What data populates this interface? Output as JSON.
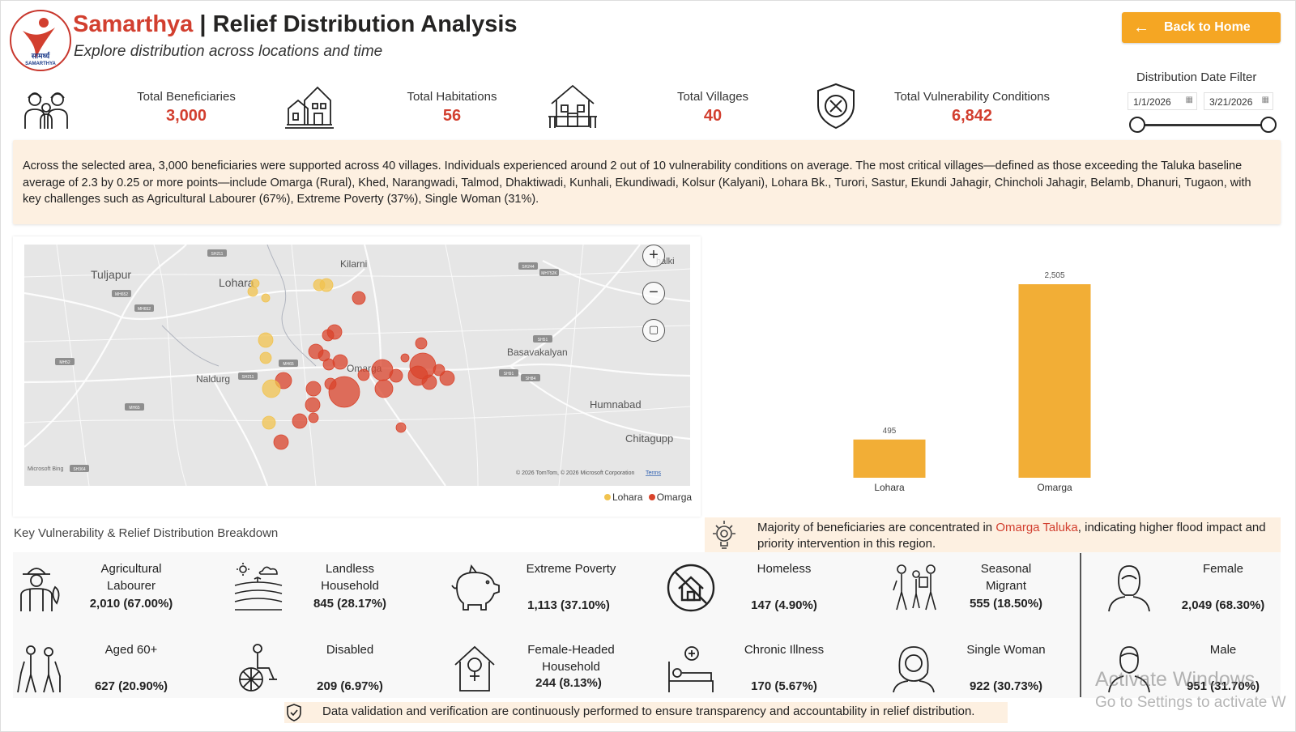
{
  "header": {
    "brand": "Samarthya",
    "separator": "|",
    "title_rest": "Relief Distribution Analysis",
    "subtitle": "Explore distribution across locations and time",
    "logo_text": "सामर्थ्य",
    "logo_subtext": "SAMARTHYA",
    "back_button": "Back to Home"
  },
  "kpis": [
    {
      "label": "Total Beneficiaries",
      "value": "3,000",
      "icon": "family-icon"
    },
    {
      "label": "Total Habitations",
      "value": "56",
      "icon": "houses-icon"
    },
    {
      "label": "Total Villages",
      "value": "40",
      "icon": "village-house-icon"
    },
    {
      "label": "Total Vulnerability Conditions",
      "value": "6,842",
      "icon": "shield-x-icon"
    }
  ],
  "date_filter": {
    "title": "Distribution Date Filter",
    "start": "1/1/2026",
    "end": "3/21/2026",
    "start_fraction": 0,
    "end_fraction": 1
  },
  "narrative": "Across the selected area, 3,000 beneficiaries were supported across 40 villages. Individuals experienced around 2 out of 10 vulnerability conditions on average. The most critical villages—defined as those exceeding the Taluka baseline average of 2.3 by 0.25 or more points—include Omarga (Rural), Khed, Narangwadi, Talmod, Dhaktiwadi, Kunhali, Ekundiwadi, Kolsur (Kalyani), Lohara Bk., Turori, Sastur, Ekundi Jahagir, Chincholi Jahagir, Belamb, Dhanuri, Tugaon, with key challenges such as Agricultural Labourer (67%), Extreme Poverty (37%), Single Woman (31%).",
  "map": {
    "place_labels": [
      "Tuljapur",
      "Lohara",
      "Kilarni",
      "Basavakalyan",
      "Naldurg",
      "Omarga",
      "Humnabad",
      "Chitagupp",
      "halki"
    ],
    "road_shields": [
      "SH211",
      "MH652",
      "MH652",
      "MH52",
      "SH211",
      "MH65",
      "SH244",
      "MH752K",
      "SH51",
      "SH91",
      "SH84",
      "MH65",
      "SH364"
    ],
    "attribution": "© 2026 TomTom, © 2026 Microsoft Corporation",
    "terms": "Terms",
    "bing": "Microsoft Bing",
    "legend": [
      {
        "name": "Lohara",
        "color": "#f1c34f"
      },
      {
        "name": "Omarga",
        "color": "#d9432b"
      }
    ],
    "controls": [
      "zoom-in",
      "zoom-out",
      "select"
    ]
  },
  "chart_data": {
    "type": "bar",
    "categories": [
      "Lohara",
      "Omarga"
    ],
    "values": [
      495,
      2505
    ],
    "data_labels": [
      "495",
      "2,505"
    ],
    "color": "#f2ae36",
    "title": "",
    "xlabel": "",
    "ylabel": "",
    "ylim": [
      0,
      2505
    ]
  },
  "insight": {
    "text_before": "Majority of beneficiaries are concentrated in ",
    "highlight": "Omarga Taluka",
    "text_after": ", indicating higher flood impact and priority intervention in this region."
  },
  "breakdown": {
    "title": "Key Vulnerability & Relief Distribution Breakdown",
    "items": [
      {
        "label": "Agricultural Labourer",
        "value": "2,010 (67.00%)",
        "icon": "farmer-icon"
      },
      {
        "label": "Landless Household",
        "value": "845 (28.17%)",
        "icon": "field-icon"
      },
      {
        "label": "Extreme Poverty",
        "value": "1,113 (37.10%)",
        "icon": "piggy-bank-icon"
      },
      {
        "label": "Homeless",
        "value": "147 (4.90%)",
        "icon": "no-house-icon"
      },
      {
        "label": "Seasonal Migrant",
        "value": "555 (18.50%)",
        "icon": "migrant-family-icon"
      },
      {
        "label": "Female",
        "value": "2,049 (68.30%)",
        "icon": "woman-icon"
      },
      {
        "label": "Aged 60+",
        "value": "627 (20.90%)",
        "icon": "elderly-icon"
      },
      {
        "label": "Disabled",
        "value": "209 (6.97%)",
        "icon": "wheelchair-icon"
      },
      {
        "label": "Female-Headed Household",
        "value": "244 (8.13%)",
        "icon": "female-house-icon"
      },
      {
        "label": "Chronic Illness",
        "value": "170 (5.67%)",
        "icon": "hospital-bed-icon"
      },
      {
        "label": "Single Woman",
        "value": "922 (30.73%)",
        "icon": "woman-headscarf-icon"
      },
      {
        "label": "Male",
        "value": "951 (31.70%)",
        "icon": "man-icon"
      }
    ]
  },
  "footer": "Data validation and verification are continuously performed to ensure transparency and accountability in relief distribution.",
  "watermark": {
    "line1": "Activate Windows",
    "line2": "Go to Settings to activate W"
  }
}
